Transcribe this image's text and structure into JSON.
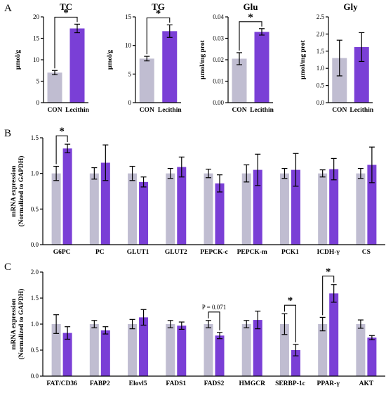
{
  "colors": {
    "con": "#c0bdd1",
    "treat": "#7a3fd6",
    "axis": "#000000"
  },
  "panel_letters": [
    "A",
    "B",
    "C"
  ],
  "chart_data": [
    {
      "id": "tc",
      "type": "bar",
      "panel": "A",
      "title": "TC",
      "ylabel": "μmol/g",
      "categories": [
        "CON",
        "Lecithin"
      ],
      "values": [
        7.0,
        17.3
      ],
      "errors": [
        0.5,
        1.0
      ],
      "ylim": [
        0,
        20
      ],
      "yticks": [
        0,
        5,
        10,
        15,
        20
      ],
      "ytick_labels": [
        "0",
        "5",
        "10",
        "15",
        "20"
      ],
      "significance": [
        "*"
      ]
    },
    {
      "id": "tg",
      "type": "bar",
      "panel": "A",
      "title": "TG",
      "ylabel": "μmol/g",
      "categories": [
        "CON",
        "Lecithin"
      ],
      "values": [
        7.7,
        12.5
      ],
      "errors": [
        0.4,
        1.1
      ],
      "ylim": [
        0,
        15
      ],
      "yticks": [
        0,
        5,
        10,
        15
      ],
      "ytick_labels": [
        "0",
        "5",
        "10",
        "15"
      ],
      "significance": [
        "*"
      ]
    },
    {
      "id": "glu",
      "type": "bar",
      "panel": "A",
      "title": "Glu",
      "ylabel": "μmol/mg prot",
      "categories": [
        "CON",
        "Lecithin"
      ],
      "values": [
        0.0205,
        0.033
      ],
      "errors": [
        0.0028,
        0.0015
      ],
      "ylim": [
        0,
        0.04
      ],
      "yticks": [
        0,
        0.01,
        0.02,
        0.03,
        0.04
      ],
      "ytick_labels": [
        "0.00",
        "0.01",
        "0.02",
        "0.03",
        "0.04"
      ],
      "significance": [
        "*"
      ]
    },
    {
      "id": "gly",
      "type": "bar",
      "panel": "A",
      "title": "Gly",
      "ylabel": "μmol/mg prot",
      "categories": [
        "CON",
        "Lecithin"
      ],
      "values": [
        1.3,
        1.62
      ],
      "errors": [
        0.52,
        0.42
      ],
      "ylim": [
        0,
        2.5
      ],
      "yticks": [
        0,
        0.5,
        1,
        1.5,
        2,
        2.5
      ],
      "ytick_labels": [
        "0.0",
        "0.5",
        "1.0",
        "1.5",
        "2.0",
        "2.5"
      ],
      "significance": []
    },
    {
      "id": "gluco",
      "type": "bar",
      "panel": "B",
      "title": "",
      "ylabel_lines": [
        "mRNA expression",
        "(Normalized to GAPDH)"
      ],
      "categories": [
        "G6PC",
        "PC",
        "GLUT1",
        "GLUT2",
        "PEPCK-c",
        "PEPCK-m",
        "PCK1",
        "ICDH-γ",
        "CS"
      ],
      "series": [
        {
          "values": [
            1.0,
            1.0,
            1.0,
            1.0,
            1.0,
            1.0,
            1.0,
            1.0,
            1.0
          ],
          "errors": [
            0.1,
            0.08,
            0.1,
            0.07,
            0.06,
            0.12,
            0.07,
            0.05,
            0.07
          ]
        },
        {
          "values": [
            1.35,
            1.15,
            0.88,
            1.09,
            0.86,
            1.05,
            1.05,
            1.06,
            1.12
          ],
          "errors": [
            0.06,
            0.25,
            0.07,
            0.14,
            0.12,
            0.22,
            0.23,
            0.15,
            0.25
          ]
        }
      ],
      "ylim": [
        0,
        1.5
      ],
      "yticks": [
        0,
        0.5,
        1,
        1.5
      ],
      "ytick_labels": [
        "0.0",
        "0.5",
        "1.0",
        "1.5"
      ],
      "significance": [
        {
          "category": "G6PC",
          "label": "*"
        }
      ]
    },
    {
      "id": "lipid",
      "type": "bar",
      "panel": "C",
      "title": "",
      "ylabel_lines": [
        "mRNA expression",
        "(Normalized to GAPDH)"
      ],
      "categories": [
        "FAT/CD36",
        "FABP2",
        "Elovl5",
        "FADS1",
        "FADS2",
        "HMGCR",
        "SERBP-1c",
        "PPAR-γ",
        "AKT"
      ],
      "series": [
        {
          "values": [
            1.0,
            1.0,
            1.0,
            1.0,
            1.0,
            1.0,
            1.0,
            1.0,
            1.0
          ],
          "errors": [
            0.18,
            0.07,
            0.09,
            0.07,
            0.07,
            0.07,
            0.2,
            0.13,
            0.08
          ]
        },
        {
          "values": [
            0.83,
            0.88,
            1.13,
            0.97,
            0.78,
            1.08,
            0.5,
            1.59,
            0.74
          ],
          "errors": [
            0.12,
            0.07,
            0.15,
            0.07,
            0.06,
            0.17,
            0.11,
            0.17,
            0.04
          ]
        }
      ],
      "ylim": [
        0,
        2.0
      ],
      "yticks": [
        0,
        0.5,
        1,
        1.5,
        2
      ],
      "ytick_labels": [
        "0.0",
        "0.5",
        "1.0",
        "1.5",
        "2.0"
      ],
      "significance": [
        {
          "category": "FADS2",
          "label": "P = 0.071",
          "type": "p"
        },
        {
          "category": "SERBP-1c",
          "label": "*"
        },
        {
          "category": "PPAR-γ",
          "label": "*"
        }
      ]
    }
  ]
}
